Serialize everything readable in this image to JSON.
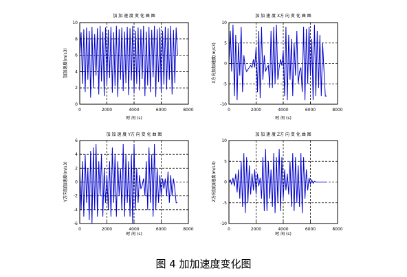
{
  "figure_caption": "图 4  加加速度变化图",
  "chart_data": [
    {
      "type": "line",
      "title": "加 加 速 度 变 化 曲 图",
      "xlabel": "时 间 (s)",
      "ylabel": "加加速度(m/s3)",
      "xlim": [
        0,
        8000
      ],
      "ylim": [
        0,
        10
      ],
      "xticks": [
        0,
        2000,
        4000,
        6000,
        8000
      ],
      "yticks": [
        0,
        2,
        4,
        6,
        8,
        10
      ],
      "grid": true,
      "color": "#0000cc",
      "series": [
        {
          "x": [
            0,
            100,
            200,
            300,
            400,
            500,
            600,
            700,
            800,
            900,
            1000,
            1100,
            1200,
            1300,
            1400,
            1500,
            1600,
            1700,
            1800,
            1900,
            2000,
            2100,
            2200,
            2300,
            2400,
            2500,
            2600,
            2700,
            2800,
            2900,
            3000,
            3100,
            3200,
            3300,
            3400,
            3500,
            3600,
            3700,
            3800,
            3900,
            4000,
            4100,
            4200,
            4300,
            4400,
            4500,
            4600,
            4700,
            4800,
            4900,
            5000,
            5100,
            5200,
            5300,
            5400,
            5500,
            5600,
            5700,
            5800,
            5900,
            6000,
            6100,
            6200,
            6300,
            6400,
            6500,
            6600,
            6700,
            6800,
            6900,
            7000,
            7100,
            7200
          ],
          "y": [
            6,
            8.8,
            2.5,
            9.2,
            1.5,
            9.4,
            3,
            9,
            0.8,
            9.5,
            2,
            8.6,
            3.5,
            9.3,
            1.2,
            9.6,
            2.8,
            8.9,
            1,
            9.4,
            2.4,
            9.1,
            3.2,
            9.5,
            1.4,
            8.8,
            2.2,
            9.6,
            0.9,
            9.2,
            3,
            9.4,
            1.6,
            8.9,
            2.6,
            9.5,
            1.1,
            9.3,
            2.9,
            9.6,
            1.3,
            9,
            2.5,
            9.4,
            1.7,
            9.2,
            3.1,
            9.6,
            1,
            8.9,
            2.3,
            9.5,
            1.5,
            9.1,
            3.3,
            9.6,
            0.9,
            9.2,
            2.7,
            9.4,
            1.4,
            9,
            2.4,
            9.5,
            1.8,
            9.3,
            3,
            9.6,
            1.2,
            9.1,
            2.6,
            9.4,
            6
          ]
        }
      ]
    },
    {
      "type": "line",
      "title": "加 加 速 度 X方 向 变 化 曲 图",
      "xlabel": "时 间 (s)",
      "ylabel": "X方向加加速度(m/s3)",
      "xlim": [
        0,
        8000
      ],
      "ylim": [
        -10,
        10
      ],
      "xticks": [
        0,
        2000,
        4000,
        6000,
        8000
      ],
      "yticks": [
        -10,
        -5,
        0,
        5,
        10
      ],
      "grid": true,
      "color": "#0000cc",
      "series": [
        {
          "x": [
            0,
            100,
            200,
            300,
            400,
            500,
            600,
            700,
            800,
            900,
            1000,
            1100,
            1200,
            1300,
            1400,
            1500,
            1600,
            1700,
            1800,
            1900,
            2000,
            2100,
            2200,
            2300,
            2400,
            2500,
            2600,
            2700,
            2800,
            2900,
            3000,
            3100,
            3200,
            3300,
            3400,
            3500,
            3600,
            3700,
            3800,
            3900,
            4000,
            4100,
            4200,
            4300,
            4400,
            4500,
            4600,
            4700,
            4800,
            4900,
            5000,
            5100,
            5200,
            5300,
            5400,
            5500,
            5600,
            5700,
            5800,
            5900,
            6000,
            6100,
            6200,
            6300,
            6400,
            6500,
            6600,
            6700,
            6800,
            6900,
            7000,
            7100,
            7200
          ],
          "y": [
            0,
            8,
            -2,
            9.5,
            -8,
            7,
            -9,
            5,
            -3,
            9,
            -7,
            2,
            -1,
            -2,
            -1.5,
            -1,
            -0.5,
            -1,
            1,
            -1,
            4,
            -7,
            8,
            -8.5,
            9,
            -4,
            2,
            -2,
            -1,
            -0.5,
            -6,
            8,
            -6,
            9,
            -5,
            9.5,
            -4,
            -1,
            1,
            -0.5,
            3,
            -8,
            9,
            -9,
            7,
            -4,
            6,
            -8,
            5,
            -3,
            8,
            -5,
            -2,
            -1,
            -7,
            9,
            -9,
            8.5,
            -5,
            9,
            -3,
            6,
            -9,
            9.5,
            -8,
            8,
            -6,
            7,
            -8,
            5,
            -2,
            -8,
            -8
          ]
        }
      ]
    },
    {
      "type": "line",
      "title": "加 加 速 度 Y方 向 变 化 曲 图",
      "xlabel": "时 间 (s)",
      "ylabel": "Y方向加加速度(m/s3)",
      "xlim": [
        0,
        8000
      ],
      "ylim": [
        -6,
        6
      ],
      "xticks": [
        0,
        2000,
        4000,
        6000,
        8000
      ],
      "yticks": [
        -6,
        -4,
        -2,
        0,
        2,
        4,
        6
      ],
      "grid": true,
      "color": "#0000cc",
      "series": [
        {
          "x": [
            0,
            100,
            200,
            300,
            400,
            500,
            600,
            700,
            800,
            900,
            1000,
            1100,
            1200,
            1300,
            1400,
            1500,
            1600,
            1700,
            1800,
            1900,
            2000,
            2100,
            2200,
            2300,
            2400,
            2500,
            2600,
            2700,
            2800,
            2900,
            3000,
            3100,
            3200,
            3300,
            3400,
            3500,
            3600,
            3700,
            3800,
            3900,
            4000,
            4100,
            4200,
            4300,
            4400,
            4500,
            4600,
            4700,
            4800,
            4900,
            5000,
            5100,
            5200,
            5300,
            5400,
            5500,
            5600,
            5700,
            5800,
            5900,
            6000,
            6100,
            6200,
            6300,
            6400,
            6500,
            6600,
            6700,
            6800,
            6900,
            7000,
            7100,
            7200
          ],
          "y": [
            2,
            -4,
            3,
            -5,
            4,
            -3,
            2,
            -5.5,
            4.5,
            -6,
            5,
            -4,
            5.5,
            -5,
            3,
            -2,
            4,
            -5,
            2,
            -3,
            1,
            -4,
            3,
            -5,
            5,
            -3,
            4,
            -5,
            3,
            -2,
            2,
            -4,
            5.5,
            -5,
            4,
            -3,
            3,
            -5,
            4,
            -6,
            5.5,
            -4,
            2,
            -3,
            1,
            -1,
            -0.5,
            0.5,
            -2,
            3,
            -4,
            5,
            -3,
            4,
            -5,
            5.5,
            -4,
            2,
            -3,
            1,
            -2,
            0.5,
            -1,
            0.5,
            -2,
            1.5,
            -3,
            1,
            -2,
            0.5,
            -1,
            -3,
            -3
          ]
        }
      ]
    },
    {
      "type": "line",
      "title": "加 加 速 度 Z方 向 变 化 曲 图",
      "xlabel": "时 间 (s)",
      "ylabel": "Z方向加加速度(m/s3)",
      "xlim": [
        0,
        8000
      ],
      "ylim": [
        -10,
        10
      ],
      "xticks": [
        0,
        2000,
        4000,
        6000,
        8000
      ],
      "yticks": [
        -10,
        -5,
        0,
        5,
        10
      ],
      "grid": true,
      "color": "#0000cc",
      "series": [
        {
          "x": [
            0,
            100,
            200,
            300,
            400,
            500,
            600,
            700,
            800,
            900,
            1000,
            1100,
            1200,
            1300,
            1400,
            1500,
            1600,
            1700,
            1800,
            1900,
            2000,
            2100,
            2200,
            2300,
            2400,
            2500,
            2600,
            2700,
            2800,
            2900,
            3000,
            3100,
            3200,
            3300,
            3400,
            3500,
            3600,
            3700,
            3800,
            3900,
            4000,
            4100,
            4200,
            4300,
            4400,
            4500,
            4600,
            4700,
            4800,
            4900,
            5000,
            5100,
            5200,
            5300,
            5400,
            5500,
            5600,
            5700,
            5800,
            5900,
            6000,
            6100,
            6200,
            6300,
            6400,
            6500,
            6600,
            6700,
            6800,
            6900,
            7000,
            7100,
            7200
          ],
          "y": [
            0,
            0.5,
            -0.5,
            1,
            -1,
            2,
            -2.5,
            3,
            -4,
            5,
            -6,
            7,
            -7.5,
            6,
            -5,
            4,
            -3,
            2,
            -2,
            3,
            -3,
            2,
            -1,
            1,
            -4,
            6,
            -7,
            8,
            -7,
            5,
            -4,
            3,
            -6,
            7,
            -7.5,
            6,
            -5,
            8,
            -7,
            6,
            -4,
            3,
            -2,
            2,
            -3,
            5,
            -6,
            7,
            -7,
            6,
            -5,
            4,
            -6,
            7,
            -7.5,
            6,
            -4,
            3,
            -2,
            1,
            -0.5,
            0.5,
            -0.3,
            0.2,
            0,
            0,
            0,
            0,
            0,
            0,
            0,
            0,
            0
          ]
        }
      ]
    }
  ]
}
